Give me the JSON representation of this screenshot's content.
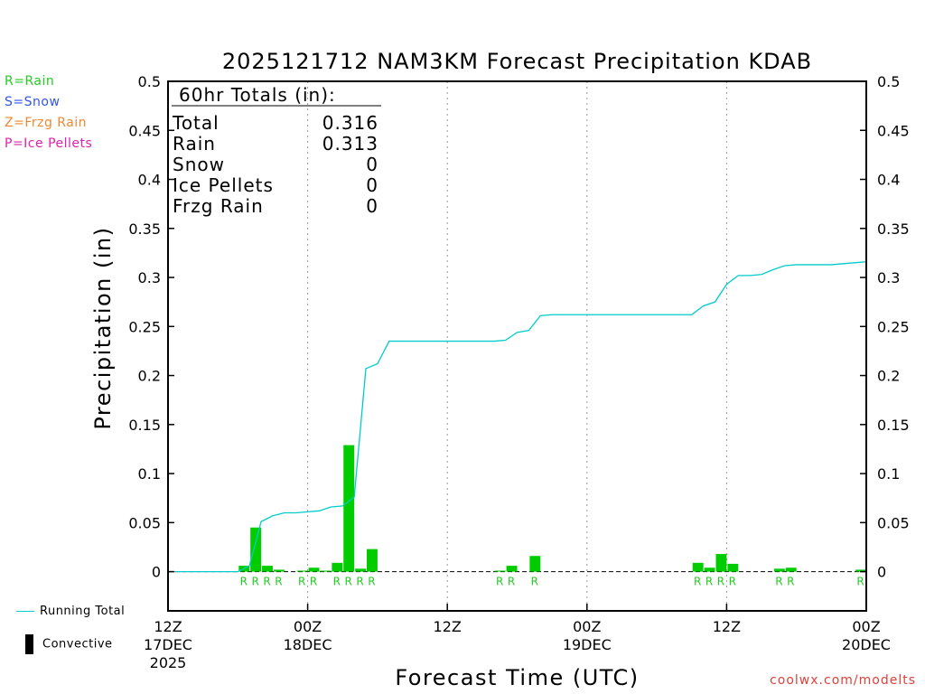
{
  "chart_data": {
    "type": "bar",
    "title": "2025121712 NAM3KM Forecast Precipitation KDAB",
    "xlabel": "Forecast Time (UTC)",
    "ylabel": "Precipitation (in)",
    "ylim": [
      -0.04,
      0.5
    ],
    "yticks": [
      0,
      0.05,
      0.1,
      0.15,
      0.2,
      0.25,
      0.3,
      0.35,
      0.4,
      0.45,
      0.5
    ],
    "ytick_labels": [
      "0",
      "0.05",
      "0.1",
      "0.15",
      "0.2",
      "0.25",
      "0.3",
      "0.35",
      "0.4",
      "0.45",
      "0.5"
    ],
    "xlim_hours": [
      0,
      60
    ],
    "x_ticks": [
      {
        "hour": 0,
        "lines": [
          "12Z",
          "17DEC",
          "2025"
        ]
      },
      {
        "hour": 12,
        "lines": [
          "00Z",
          "18DEC"
        ]
      },
      {
        "hour": 24,
        "lines": [
          "12Z"
        ]
      },
      {
        "hour": 36,
        "lines": [
          "00Z",
          "19DEC"
        ]
      },
      {
        "hour": 48,
        "lines": [
          "12Z"
        ]
      },
      {
        "hour": 60,
        "lines": [
          "00Z",
          "20DEC"
        ]
      }
    ],
    "grid_hours": [
      12,
      24,
      36,
      48
    ],
    "series": [
      {
        "name": "Rain",
        "kind": "bar",
        "color": "#00cc00",
        "hours": [
          7,
          8,
          9,
          10,
          12,
          13,
          14,
          15,
          16,
          17,
          18,
          19,
          29,
          30,
          32,
          46,
          47,
          48,
          49,
          53,
          54,
          60
        ],
        "values": [
          0.006,
          0.045,
          0.006,
          0.002,
          0.001,
          0.004,
          0.001,
          0.009,
          0.129,
          0.003,
          0.023,
          0.0,
          0.001,
          0.006,
          0.016,
          0.009,
          0.004,
          0.018,
          0.008,
          0.003,
          0.004,
          0.002
        ],
        "ptype": [
          "R",
          "R",
          "R",
          "R",
          "R",
          "R",
          "",
          "R",
          "R",
          "R",
          "R",
          "",
          "R",
          "R",
          "R",
          "R",
          "R",
          "R",
          "R",
          "R",
          "R",
          "R"
        ]
      },
      {
        "name": "Running Total",
        "kind": "line",
        "color": "#00cccc",
        "hours": [
          0,
          6,
          7,
          8,
          9,
          10,
          11,
          12,
          13,
          14,
          15,
          16,
          17,
          18,
          19,
          20,
          21,
          22,
          23,
          24,
          25,
          26,
          27,
          28,
          29,
          30,
          31,
          32,
          33,
          34,
          35,
          36,
          42,
          45,
          46,
          47,
          48,
          49,
          50,
          51,
          52,
          53,
          54,
          57,
          60
        ],
        "values": [
          0,
          0,
          0.006,
          0.051,
          0.057,
          0.06,
          0.06,
          0.061,
          0.062,
          0.066,
          0.067,
          0.076,
          0.207,
          0.212,
          0.235,
          0.235,
          0.235,
          0.235,
          0.235,
          0.235,
          0.235,
          0.235,
          0.235,
          0.235,
          0.236,
          0.244,
          0.246,
          0.261,
          0.262,
          0.262,
          0.262,
          0.262,
          0.262,
          0.262,
          0.271,
          0.275,
          0.293,
          0.302,
          0.302,
          0.303,
          0.308,
          0.312,
          0.313,
          0.313,
          0.316
        ]
      }
    ],
    "totals_box": {
      "heading": "60hr Totals (in):",
      "rows": [
        {
          "label": "Total",
          "value": "0.316"
        },
        {
          "label": "Rain",
          "value": "0.313"
        },
        {
          "label": "Snow",
          "value": "0"
        },
        {
          "label": "Ice Pellets",
          "value": "0"
        },
        {
          "label": "Frzg Rain",
          "value": "0"
        }
      ]
    }
  },
  "type_legend": [
    {
      "text": "R=Rain",
      "color": "#22cc22"
    },
    {
      "text": "S=Snow",
      "color": "#3355ee"
    },
    {
      "text": "Z=Frzg Rain",
      "color": "#ee8833"
    },
    {
      "text": "P=Ice Pellets",
      "color": "#dd22aa"
    }
  ],
  "footer_legend": {
    "running_total": "Running Total",
    "convective": "Convective"
  },
  "credit": "coolwx.com/modelts"
}
